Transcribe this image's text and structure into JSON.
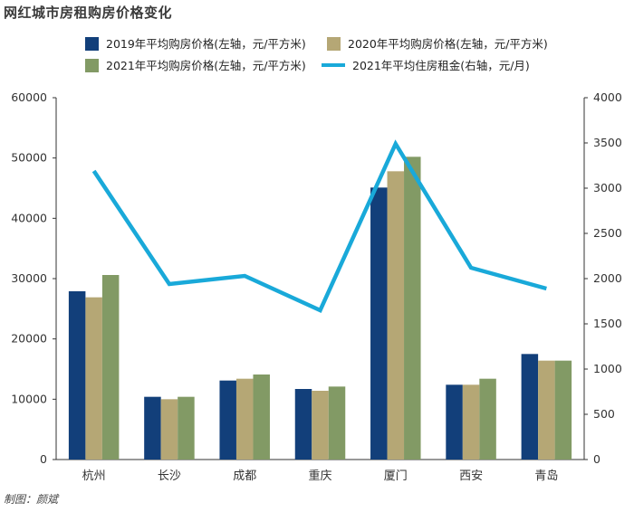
{
  "title": "网红城市房租购房价格变化",
  "credit": "制图：颜斌",
  "chart_data": {
    "type": "bar",
    "categories": [
      "杭州",
      "长沙",
      "成都",
      "重庆",
      "厦门",
      "西安",
      "青岛"
    ],
    "series": [
      {
        "name": "2019年平均购房价格(左轴，元/平方米)",
        "type": "bar",
        "axis": "left",
        "color": "#123f7a",
        "values": [
          27900,
          10400,
          13100,
          11700,
          45100,
          12400,
          17500
        ]
      },
      {
        "name": "2020年平均购房价格(左轴，元/平方米)",
        "type": "bar",
        "axis": "left",
        "color": "#b5a775",
        "values": [
          26900,
          10000,
          13400,
          11400,
          47800,
          12400,
          16400
        ]
      },
      {
        "name": "2021年平均购房价格(左轴，元/平方米)",
        "type": "bar",
        "axis": "left",
        "color": "#829a65",
        "values": [
          30600,
          10400,
          14100,
          12100,
          50200,
          13400,
          16400
        ]
      },
      {
        "name": "2021年平均住房租金(右轴，元/月)",
        "type": "line",
        "axis": "right",
        "color": "#19a9d9",
        "values": [
          3190,
          1940,
          2030,
          1650,
          3490,
          2120,
          1890
        ]
      }
    ],
    "y_left": {
      "ylim": [
        0,
        60000
      ],
      "ticks": [
        0,
        10000,
        20000,
        30000,
        40000,
        50000,
        60000
      ]
    },
    "y_right": {
      "ylim": [
        0,
        4000
      ],
      "ticks": [
        0,
        500,
        1000,
        1500,
        2000,
        2500,
        3000,
        3500,
        4000
      ]
    },
    "grid": false,
    "legend_position": "top"
  }
}
